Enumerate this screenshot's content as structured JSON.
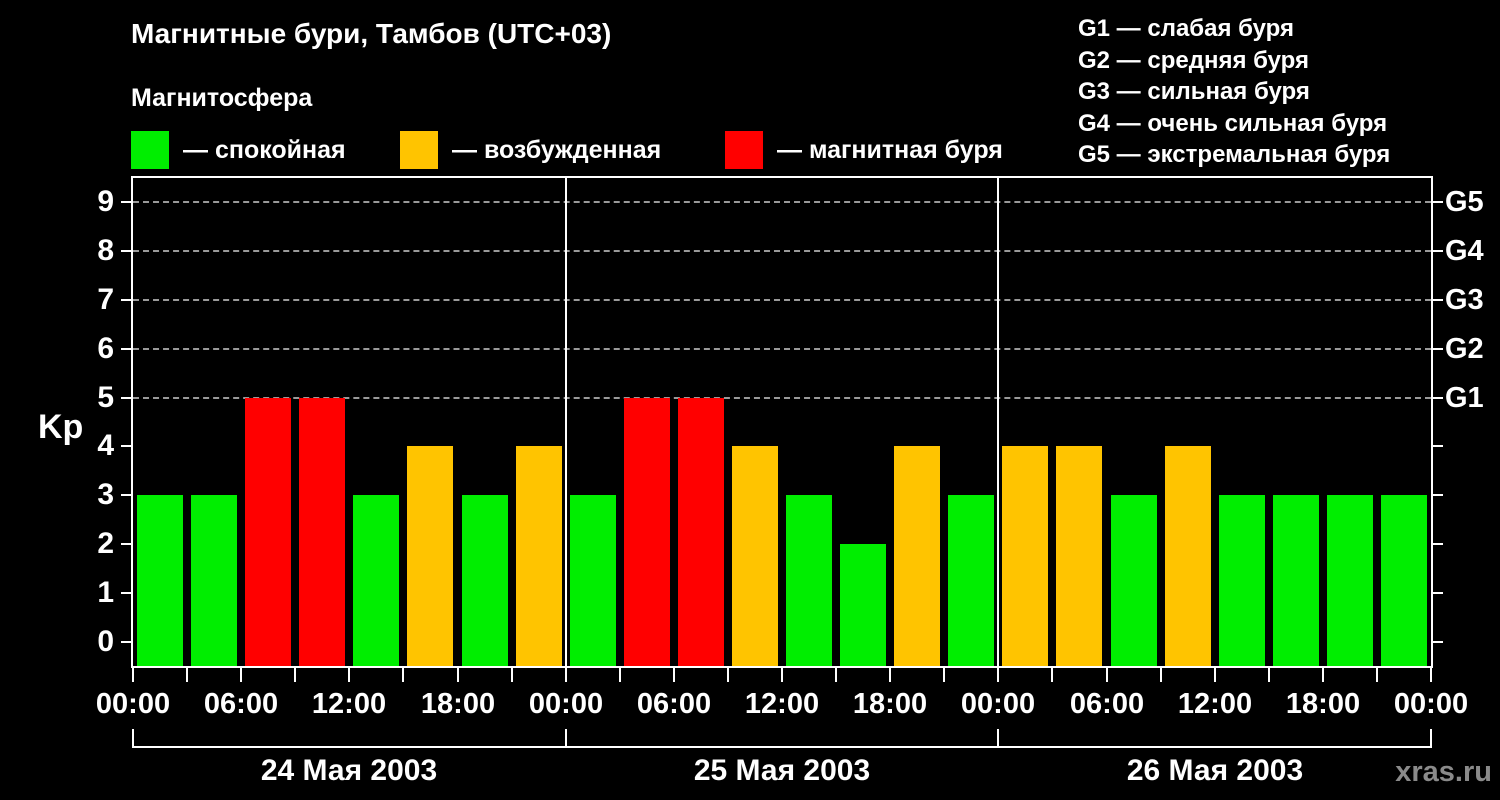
{
  "title": "Магнитные бури, Тамбов (UTC+03)",
  "subtitle": "Магнитосфера",
  "magnetosphere_legend": [
    {
      "label": "— спокойная",
      "color": "#00EE00"
    },
    {
      "label": "— возбужденная",
      "color": "#FFC400"
    },
    {
      "label": "— магнитная буря",
      "color": "#FF0000"
    }
  ],
  "storm_scale_legend": [
    "G1 — слабая буря",
    "G2 — средняя буря",
    "G3 — сильная буря",
    "G4 — очень сильная буря",
    "G5 — экстремальная буря"
  ],
  "watermark": "xras.ru",
  "chart_data": {
    "type": "bar",
    "title": "Магнитные бури, Тамбов (UTC+03)",
    "ylabel": "Kp",
    "ylim": [
      -0.5,
      9.5
    ],
    "yticks": [
      0,
      1,
      2,
      3,
      4,
      5,
      6,
      7,
      8,
      9
    ],
    "grid_levels": [
      5,
      6,
      7,
      8,
      9
    ],
    "right_axis_labels": [
      {
        "value": 5,
        "label": "G1"
      },
      {
        "value": 6,
        "label": "G2"
      },
      {
        "value": 7,
        "label": "G3"
      },
      {
        "value": 8,
        "label": "G4"
      },
      {
        "value": 9,
        "label": "G5"
      }
    ],
    "bar_interval_hours": 3,
    "time_tick_labels": [
      "00:00",
      "06:00",
      "12:00",
      "18:00"
    ],
    "days": [
      {
        "date": "24 Мая 2003",
        "values": [
          3,
          3,
          5,
          5,
          3,
          4,
          3,
          4
        ]
      },
      {
        "date": "25 Мая 2003",
        "values": [
          3,
          5,
          5,
          4,
          3,
          2,
          4,
          3
        ]
      },
      {
        "date": "26 Мая 2003",
        "values": [
          4,
          4,
          3,
          4,
          3,
          3,
          3,
          3
        ]
      }
    ],
    "colors": {
      "quiet": "#00EE00",
      "excited": "#FFC400",
      "storm": "#FF0000"
    },
    "color_thresholds": {
      "excited_from": 4,
      "storm_from": 5
    },
    "legend_position": "top",
    "grid": "dashed horizontal at Kp 5..9"
  }
}
